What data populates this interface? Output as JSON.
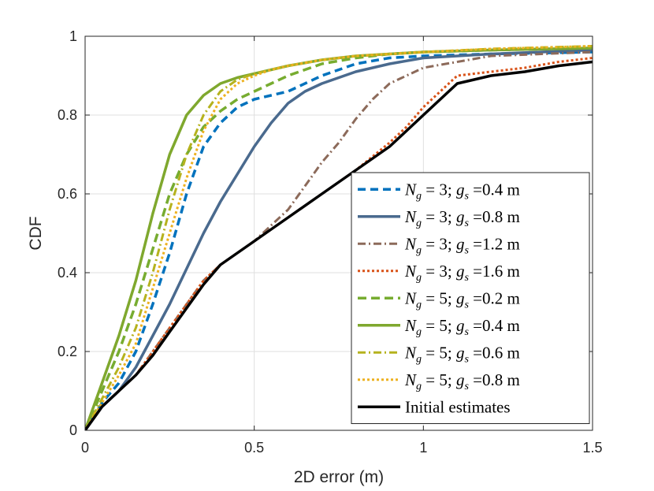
{
  "chart_data": {
    "type": "line",
    "title": "",
    "xlabel": "2D error (m)",
    "ylabel": "CDF",
    "xlim": [
      0,
      1.5
    ],
    "ylim": [
      0,
      1
    ],
    "xticks": [
      0,
      0.5,
      1,
      1.5
    ],
    "xtick_labels": [
      "0",
      "0.5",
      "1",
      "1.5"
    ],
    "yticks": [
      0,
      0.2,
      0.4,
      0.6,
      0.8,
      1
    ],
    "ytick_labels": [
      "0",
      "0.2",
      "0.4",
      "0.6",
      "0.8",
      "1"
    ],
    "grid": true,
    "legend_position": "bottom-right",
    "series": [
      {
        "name": "Ng = 3; gs = 0.4 m",
        "label": {
          "var": "N",
          "sub": "g",
          "eq": " = 3; ",
          "var2": "g",
          "sub2": "s",
          "rest": " =0.4 m"
        },
        "color": "#0072BD",
        "dash": "10,6",
        "width": 3.5,
        "x": [
          0,
          0.05,
          0.1,
          0.15,
          0.2,
          0.25,
          0.3,
          0.35,
          0.4,
          0.45,
          0.5,
          0.55,
          0.6,
          0.7,
          0.8,
          0.9,
          1.0,
          1.2,
          1.5
        ],
        "y": [
          0,
          0.07,
          0.12,
          0.2,
          0.32,
          0.45,
          0.6,
          0.72,
          0.78,
          0.82,
          0.84,
          0.85,
          0.86,
          0.9,
          0.93,
          0.945,
          0.95,
          0.955,
          0.96
        ]
      },
      {
        "name": "Ng = 3; gs = 0.8 m",
        "label": {
          "var": "N",
          "sub": "g",
          "eq": " = 3; ",
          "var2": "g",
          "sub2": "s",
          "rest": " =0.8 m"
        },
        "color": "#4A6A8E",
        "dash": "",
        "width": 3.5,
        "x": [
          0,
          0.05,
          0.1,
          0.15,
          0.2,
          0.25,
          0.3,
          0.35,
          0.4,
          0.45,
          0.5,
          0.55,
          0.6,
          0.65,
          0.7,
          0.8,
          0.9,
          1.0,
          1.2,
          1.5
        ],
        "y": [
          0,
          0.06,
          0.1,
          0.16,
          0.24,
          0.32,
          0.41,
          0.5,
          0.58,
          0.65,
          0.72,
          0.78,
          0.83,
          0.86,
          0.88,
          0.91,
          0.93,
          0.945,
          0.955,
          0.965
        ]
      },
      {
        "name": "Ng = 3; gs = 1.2 m",
        "label": {
          "var": "N",
          "sub": "g",
          "eq": " = 3; ",
          "var2": "g",
          "sub2": "s",
          "rest": " =1.2 m"
        },
        "color": "#8C6A5A",
        "dash": "10,4,2,4",
        "width": 3,
        "x": [
          0,
          0.05,
          0.1,
          0.15,
          0.2,
          0.25,
          0.3,
          0.35,
          0.4,
          0.45,
          0.5,
          0.55,
          0.6,
          0.65,
          0.7,
          0.75,
          0.8,
          0.85,
          0.9,
          1.0,
          1.2,
          1.5
        ],
        "y": [
          0,
          0.06,
          0.1,
          0.14,
          0.2,
          0.26,
          0.32,
          0.38,
          0.42,
          0.45,
          0.48,
          0.52,
          0.56,
          0.62,
          0.68,
          0.73,
          0.79,
          0.84,
          0.88,
          0.92,
          0.95,
          0.96
        ]
      },
      {
        "name": "Ng = 3; gs = 1.6 m",
        "label": {
          "var": "N",
          "sub": "g",
          "eq": " = 3; ",
          "var2": "g",
          "sub2": "s",
          "rest": " =1.6 m"
        },
        "color": "#D95319",
        "dash": "3,3",
        "width": 3,
        "x": [
          0,
          0.05,
          0.1,
          0.15,
          0.2,
          0.25,
          0.3,
          0.35,
          0.4,
          0.45,
          0.5,
          0.55,
          0.6,
          0.7,
          0.8,
          0.9,
          0.95,
          1.0,
          1.05,
          1.1,
          1.2,
          1.3,
          1.4,
          1.5
        ],
        "y": [
          0,
          0.06,
          0.1,
          0.14,
          0.2,
          0.26,
          0.32,
          0.38,
          0.42,
          0.45,
          0.48,
          0.51,
          0.54,
          0.6,
          0.66,
          0.73,
          0.77,
          0.82,
          0.86,
          0.9,
          0.91,
          0.92,
          0.935,
          0.945
        ]
      },
      {
        "name": "Ng = 5; gs = 0.2 m",
        "label": {
          "var": "N",
          "sub": "g",
          "eq": " = 5; ",
          "var2": "g",
          "sub2": "s",
          "rest": " =0.2 m"
        },
        "color": "#77AC30",
        "dash": "11,6",
        "width": 3.5,
        "x": [
          0,
          0.05,
          0.1,
          0.15,
          0.2,
          0.25,
          0.3,
          0.35,
          0.4,
          0.45,
          0.5,
          0.55,
          0.6,
          0.7,
          0.8,
          0.9,
          1.0,
          1.2,
          1.5
        ],
        "y": [
          0,
          0.1,
          0.2,
          0.32,
          0.46,
          0.6,
          0.7,
          0.77,
          0.81,
          0.84,
          0.86,
          0.88,
          0.9,
          0.93,
          0.945,
          0.955,
          0.96,
          0.965,
          0.97
        ]
      },
      {
        "name": "Ng = 5; gs = 0.4 m",
        "label": {
          "var": "N",
          "sub": "g",
          "eq": " = 5; ",
          "var2": "g",
          "sub2": "s",
          "rest": " =0.4 m"
        },
        "color": "#7FA82E",
        "dash": "",
        "width": 3.5,
        "x": [
          0,
          0.05,
          0.1,
          0.15,
          0.2,
          0.25,
          0.3,
          0.35,
          0.4,
          0.45,
          0.5,
          0.6,
          0.7,
          0.8,
          0.9,
          1.0,
          1.2,
          1.5
        ],
        "y": [
          0,
          0.12,
          0.24,
          0.38,
          0.55,
          0.7,
          0.8,
          0.85,
          0.88,
          0.895,
          0.905,
          0.925,
          0.94,
          0.95,
          0.955,
          0.96,
          0.965,
          0.97
        ]
      },
      {
        "name": "Ng = 5; gs = 0.6 m",
        "label": {
          "var": "N",
          "sub": "g",
          "eq": " = 5; ",
          "var2": "g",
          "sub2": "s",
          "rest": " =0.6 m"
        },
        "color": "#B5B21E",
        "dash": "10,4,2,4",
        "width": 3,
        "x": [
          0,
          0.05,
          0.1,
          0.15,
          0.2,
          0.25,
          0.3,
          0.35,
          0.4,
          0.45,
          0.5,
          0.55,
          0.6,
          0.7,
          0.8,
          0.9,
          1.0,
          1.2,
          1.5
        ],
        "y": [
          0,
          0.08,
          0.16,
          0.26,
          0.4,
          0.56,
          0.7,
          0.8,
          0.86,
          0.89,
          0.905,
          0.915,
          0.925,
          0.94,
          0.95,
          0.955,
          0.96,
          0.968,
          0.975
        ]
      },
      {
        "name": "Ng = 5; gs = 0.8 m",
        "label": {
          "var": "N",
          "sub": "g",
          "eq": " = 5; ",
          "var2": "g",
          "sub2": "s",
          "rest": " =0.8 m"
        },
        "color": "#EDB120",
        "dash": "3,3",
        "width": 3,
        "x": [
          0,
          0.05,
          0.1,
          0.15,
          0.2,
          0.25,
          0.3,
          0.35,
          0.4,
          0.45,
          0.5,
          0.55,
          0.6,
          0.7,
          0.8,
          0.9,
          1.0,
          1.2,
          1.5
        ],
        "y": [
          0,
          0.07,
          0.14,
          0.22,
          0.36,
          0.5,
          0.64,
          0.76,
          0.84,
          0.88,
          0.9,
          0.915,
          0.925,
          0.94,
          0.95,
          0.955,
          0.96,
          0.968,
          0.975
        ]
      },
      {
        "name": "Initial estimates",
        "label": {
          "text": "Initial estimates"
        },
        "color": "#000000",
        "dash": "",
        "width": 3.5,
        "x": [
          0,
          0.05,
          0.1,
          0.15,
          0.2,
          0.25,
          0.3,
          0.35,
          0.4,
          0.45,
          0.5,
          0.55,
          0.6,
          0.7,
          0.8,
          0.9,
          0.95,
          1.0,
          1.05,
          1.1,
          1.2,
          1.3,
          1.4,
          1.5
        ],
        "y": [
          0,
          0.06,
          0.1,
          0.14,
          0.19,
          0.25,
          0.31,
          0.37,
          0.42,
          0.45,
          0.48,
          0.51,
          0.54,
          0.6,
          0.66,
          0.72,
          0.76,
          0.8,
          0.84,
          0.88,
          0.9,
          0.91,
          0.925,
          0.935
        ]
      }
    ]
  }
}
